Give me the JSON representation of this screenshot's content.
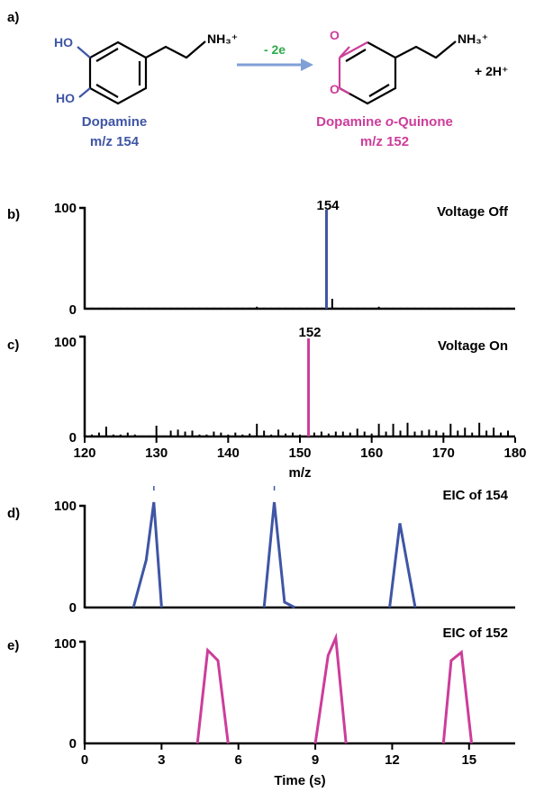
{
  "colors": {
    "blue": "#3f55a5",
    "pink": "#cc3d9a",
    "green": "#2eaa4b",
    "arrow": "#7f9fd6",
    "black": "#000000"
  },
  "panel_a": {
    "label": "a)",
    "reactant": {
      "substituents": [
        "HO",
        "HO"
      ],
      "chain": "NH₃⁺",
      "name": "Dopamine",
      "mz": "m/z 154"
    },
    "arrow_text": "- 2e",
    "product": {
      "substituents": [
        "O",
        "O"
      ],
      "chain": "NH₃⁺",
      "byproduct": "+ 2H⁺",
      "name_prefix": "Dopamine ",
      "name_italic": "o",
      "name_suffix": "-Quinone",
      "mz": "m/z 152"
    }
  },
  "chart_data": [
    {
      "panel": "b)",
      "type": "bar",
      "title": "Voltage Off",
      "xlim": [
        120,
        180
      ],
      "ylim": [
        0,
        100
      ],
      "yticks": [
        "0",
        "100"
      ],
      "peak": {
        "label": "154",
        "x": 153.7,
        "y": 100,
        "color": "#3f55a5"
      },
      "bars": [
        [
          120,
          1
        ],
        [
          121,
          1
        ],
        [
          122,
          1
        ],
        [
          123,
          1
        ],
        [
          124,
          1
        ],
        [
          125,
          1
        ],
        [
          126,
          1
        ],
        [
          127,
          1
        ],
        [
          128,
          1
        ],
        [
          129,
          1
        ],
        [
          130,
          1
        ],
        [
          131,
          1
        ],
        [
          132,
          1
        ],
        [
          133,
          1
        ],
        [
          134,
          1
        ],
        [
          135,
          1
        ],
        [
          136,
          1
        ],
        [
          137,
          1
        ],
        [
          138,
          1
        ],
        [
          139,
          1
        ],
        [
          140,
          1
        ],
        [
          141,
          1
        ],
        [
          142,
          1
        ],
        [
          143,
          1
        ],
        [
          144,
          2
        ],
        [
          145,
          1
        ],
        [
          146,
          1
        ],
        [
          147,
          1
        ],
        [
          148,
          1
        ],
        [
          149,
          1
        ],
        [
          150,
          1
        ],
        [
          151,
          1
        ],
        [
          152,
          1
        ],
        [
          153,
          1
        ],
        [
          154.5,
          10
        ],
        [
          155,
          1
        ],
        [
          156,
          1
        ],
        [
          157,
          1
        ],
        [
          158,
          1
        ],
        [
          159,
          1
        ],
        [
          160,
          1
        ],
        [
          161,
          2
        ],
        [
          162,
          1
        ],
        [
          163,
          1
        ],
        [
          164,
          1
        ],
        [
          165,
          1
        ],
        [
          166,
          1
        ],
        [
          167,
          1
        ],
        [
          168,
          1
        ],
        [
          169,
          1
        ],
        [
          170,
          1
        ],
        [
          171,
          1
        ],
        [
          172,
          1
        ],
        [
          173,
          1
        ],
        [
          174,
          1
        ],
        [
          175,
          1
        ],
        [
          176,
          1
        ],
        [
          177,
          1
        ],
        [
          178,
          1
        ],
        [
          179,
          1
        ]
      ]
    },
    {
      "panel": "c)",
      "type": "bar",
      "title": "Voltage On",
      "xlim": [
        120,
        180
      ],
      "ylim": [
        0,
        100
      ],
      "yticks": [
        "0",
        "100"
      ],
      "xticks": [
        120,
        130,
        140,
        150,
        160,
        170,
        180
      ],
      "xlabel": "m/z",
      "peak": {
        "label": "152",
        "x": 151.2,
        "y": 100,
        "color": "#cc3d9a"
      },
      "bars": [
        [
          121,
          2
        ],
        [
          122,
          4
        ],
        [
          123,
          10
        ],
        [
          124,
          2
        ],
        [
          125,
          2
        ],
        [
          126,
          4
        ],
        [
          127,
          2
        ],
        [
          128,
          1
        ],
        [
          129,
          1
        ],
        [
          130,
          11
        ],
        [
          131,
          1
        ],
        [
          132,
          6
        ],
        [
          133,
          7
        ],
        [
          134,
          5
        ],
        [
          135,
          6
        ],
        [
          136,
          2
        ],
        [
          137,
          2
        ],
        [
          138,
          5
        ],
        [
          139,
          4
        ],
        [
          140,
          2
        ],
        [
          141,
          4
        ],
        [
          142,
          2
        ],
        [
          143,
          3
        ],
        [
          144,
          13
        ],
        [
          145,
          6
        ],
        [
          146,
          2
        ],
        [
          147,
          7
        ],
        [
          148,
          3
        ],
        [
          149,
          4
        ],
        [
          150,
          2
        ],
        [
          152,
          4
        ],
        [
          153,
          5
        ],
        [
          154,
          3
        ],
        [
          155,
          5
        ],
        [
          156,
          5
        ],
        [
          157,
          4
        ],
        [
          158,
          8
        ],
        [
          159,
          5
        ],
        [
          160,
          3
        ],
        [
          161,
          13
        ],
        [
          162,
          5
        ],
        [
          163,
          13
        ],
        [
          164,
          6
        ],
        [
          165,
          14
        ],
        [
          166,
          5
        ],
        [
          167,
          6
        ],
        [
          168,
          7
        ],
        [
          169,
          6
        ],
        [
          170,
          4
        ],
        [
          171,
          13
        ],
        [
          172,
          6
        ],
        [
          173,
          9
        ],
        [
          174,
          4
        ],
        [
          175,
          14
        ],
        [
          176,
          6
        ],
        [
          177,
          9
        ],
        [
          178,
          4
        ],
        [
          179,
          6
        ]
      ]
    },
    {
      "panel": "d)",
      "type": "line",
      "title": "EIC of 154",
      "xlim": [
        0,
        16.8
      ],
      "ylim": [
        0,
        100
      ],
      "yticks": [
        "0",
        "100"
      ],
      "color": "#3f55a5",
      "segments": [
        [
          [
            1.9,
            0
          ],
          [
            2.4,
            45
          ],
          [
            2.7,
            100
          ],
          [
            3.0,
            0
          ]
        ],
        [
          [
            7.0,
            0
          ],
          [
            7.4,
            100
          ],
          [
            7.8,
            5
          ],
          [
            8.2,
            0
          ]
        ],
        [
          [
            11.9,
            0
          ],
          [
            12.3,
            80
          ],
          [
            12.9,
            0
          ]
        ]
      ],
      "tick_marks": [
        2.7,
        7.4
      ]
    },
    {
      "panel": "e)",
      "type": "line",
      "title": "EIC of 152",
      "xlim": [
        0,
        16.8
      ],
      "ylim": [
        0,
        100
      ],
      "yticks": [
        "0",
        "100"
      ],
      "color": "#cc3d9a",
      "xticks": [
        0,
        3,
        6,
        9,
        12,
        15
      ],
      "xlabel": "Time (s)",
      "segments": [
        [
          [
            4.4,
            0
          ],
          [
            4.8,
            90
          ],
          [
            5.2,
            80
          ],
          [
            5.6,
            0
          ]
        ],
        [
          [
            9.0,
            0
          ],
          [
            9.5,
            85
          ],
          [
            9.8,
            102
          ],
          [
            10.2,
            0
          ]
        ],
        [
          [
            14.0,
            0
          ],
          [
            14.3,
            80
          ],
          [
            14.7,
            88
          ],
          [
            15.1,
            0
          ]
        ]
      ]
    }
  ]
}
